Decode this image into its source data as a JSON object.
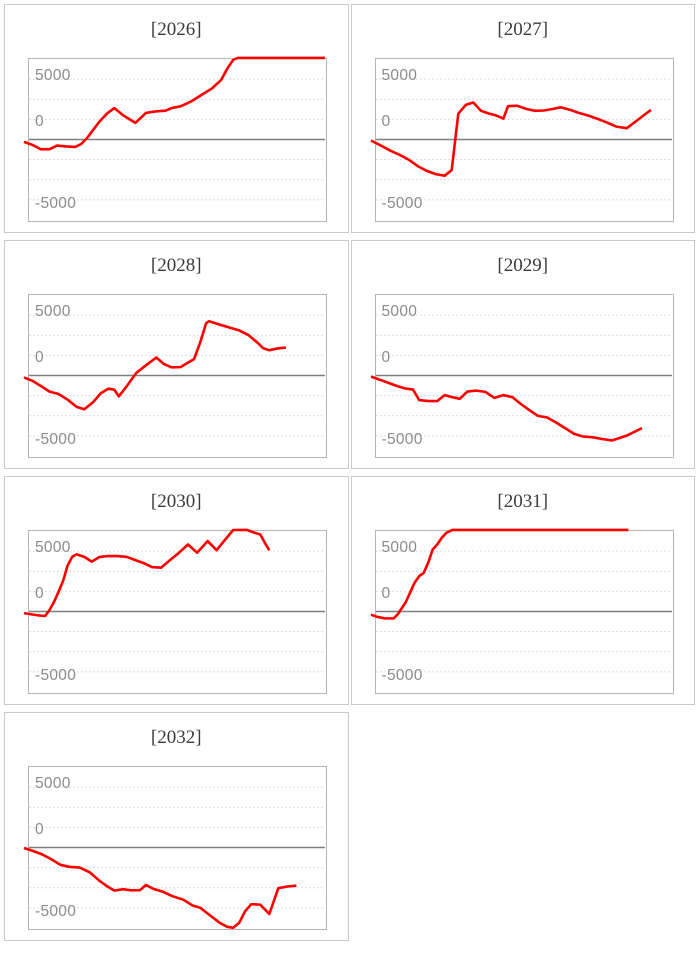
{
  "page": {
    "background": "#ffffff"
  },
  "colors": {
    "line": "#fe0000",
    "grid": "#dcdcdc",
    "zero_line": "#7f7f7f",
    "panel_border": "#c9c9c9",
    "plot_border": "#b5b5b5",
    "title_text": "#3b3b3f",
    "axis_text": "#8b8b8b"
  },
  "chart_data": [
    {
      "type": "line",
      "title": "[2026]",
      "ylim": [
        -5000,
        5000
      ],
      "ytick_labels": [
        "5000",
        "0",
        "-5000"
      ],
      "gridline_interval": 1250,
      "zero_line": true,
      "grid": "dashed-horizontal",
      "legend": "none",
      "points": [
        [
          0.0,
          -150
        ],
        [
          0.03,
          -350
        ],
        [
          0.055,
          -600
        ],
        [
          0.085,
          -600
        ],
        [
          0.11,
          -380
        ],
        [
          0.14,
          -430
        ],
        [
          0.17,
          -460
        ],
        [
          0.19,
          -280
        ],
        [
          0.21,
          100
        ],
        [
          0.23,
          600
        ],
        [
          0.25,
          1100
        ],
        [
          0.275,
          1600
        ],
        [
          0.3,
          1950
        ],
        [
          0.33,
          1500
        ],
        [
          0.37,
          1030
        ],
        [
          0.405,
          1650
        ],
        [
          0.44,
          1750
        ],
        [
          0.47,
          1790
        ],
        [
          0.49,
          1950
        ],
        [
          0.52,
          2060
        ],
        [
          0.555,
          2360
        ],
        [
          0.59,
          2770
        ],
        [
          0.625,
          3180
        ],
        [
          0.655,
          3700
        ],
        [
          0.675,
          4400
        ],
        [
          0.695,
          4950
        ],
        [
          0.71,
          5120
        ],
        [
          1.0,
          5120
        ]
      ]
    },
    {
      "type": "line",
      "title": "[2027]",
      "ylim": [
        -5000,
        5000
      ],
      "ytick_labels": [
        "5000",
        "0",
        "-5000"
      ],
      "gridline_interval": 1250,
      "zero_line": true,
      "grid": "dashed-horizontal",
      "legend": "none",
      "points": [
        [
          0.0,
          -60
        ],
        [
          0.03,
          -350
        ],
        [
          0.065,
          -700
        ],
        [
          0.095,
          -950
        ],
        [
          0.125,
          -1250
        ],
        [
          0.155,
          -1650
        ],
        [
          0.185,
          -1950
        ],
        [
          0.215,
          -2150
        ],
        [
          0.245,
          -2250
        ],
        [
          0.268,
          -1900
        ],
        [
          0.29,
          1600
        ],
        [
          0.315,
          2150
        ],
        [
          0.34,
          2300
        ],
        [
          0.365,
          1780
        ],
        [
          0.39,
          1620
        ],
        [
          0.415,
          1500
        ],
        [
          0.44,
          1300
        ],
        [
          0.455,
          2070
        ],
        [
          0.485,
          2100
        ],
        [
          0.515,
          1900
        ],
        [
          0.545,
          1780
        ],
        [
          0.575,
          1800
        ],
        [
          0.605,
          1900
        ],
        [
          0.63,
          2000
        ],
        [
          0.66,
          1850
        ],
        [
          0.69,
          1650
        ],
        [
          0.72,
          1500
        ],
        [
          0.75,
          1300
        ],
        [
          0.78,
          1080
        ],
        [
          0.815,
          800
        ],
        [
          0.85,
          700
        ],
        [
          0.93,
          1840
        ]
      ]
    },
    {
      "type": "line",
      "title": "[2028]",
      "ylim": [
        -5000,
        5000
      ],
      "ytick_labels": [
        "5000",
        "0",
        "-5000"
      ],
      "gridline_interval": 1250,
      "zero_line": true,
      "grid": "dashed-horizontal",
      "legend": "none",
      "points": [
        [
          0.0,
          -120
        ],
        [
          0.03,
          -350
        ],
        [
          0.06,
          -700
        ],
        [
          0.085,
          -1000
        ],
        [
          0.115,
          -1150
        ],
        [
          0.145,
          -1500
        ],
        [
          0.175,
          -1950
        ],
        [
          0.2,
          -2100
        ],
        [
          0.23,
          -1650
        ],
        [
          0.255,
          -1100
        ],
        [
          0.28,
          -820
        ],
        [
          0.3,
          -880
        ],
        [
          0.315,
          -1300
        ],
        [
          0.34,
          -700
        ],
        [
          0.373,
          160
        ],
        [
          0.41,
          700
        ],
        [
          0.44,
          1120
        ],
        [
          0.465,
          710
        ],
        [
          0.49,
          510
        ],
        [
          0.52,
          520
        ],
        [
          0.545,
          800
        ],
        [
          0.565,
          1020
        ],
        [
          0.585,
          2040
        ],
        [
          0.605,
          3250
        ],
        [
          0.615,
          3370
        ],
        [
          0.65,
          3160
        ],
        [
          0.685,
          2960
        ],
        [
          0.715,
          2800
        ],
        [
          0.745,
          2520
        ],
        [
          0.775,
          2050
        ],
        [
          0.795,
          1690
        ],
        [
          0.815,
          1570
        ],
        [
          0.845,
          1690
        ],
        [
          0.87,
          1730
        ]
      ]
    },
    {
      "type": "line",
      "title": "[2029]",
      "ylim": [
        -5000,
        5000
      ],
      "ytick_labels": [
        "5000",
        "0",
        "-5000"
      ],
      "gridline_interval": 1250,
      "zero_line": true,
      "grid": "dashed-horizontal",
      "legend": "none",
      "points": [
        [
          0.0,
          -60
        ],
        [
          0.03,
          -270
        ],
        [
          0.06,
          -470
        ],
        [
          0.09,
          -680
        ],
        [
          0.115,
          -815
        ],
        [
          0.14,
          -875
        ],
        [
          0.16,
          -1530
        ],
        [
          0.19,
          -1590
        ],
        [
          0.22,
          -1590
        ],
        [
          0.245,
          -1220
        ],
        [
          0.27,
          -1350
        ],
        [
          0.295,
          -1450
        ],
        [
          0.32,
          -1000
        ],
        [
          0.35,
          -940
        ],
        [
          0.38,
          -1020
        ],
        [
          0.41,
          -1390
        ],
        [
          0.44,
          -1220
        ],
        [
          0.47,
          -1350
        ],
        [
          0.5,
          -1800
        ],
        [
          0.53,
          -2200
        ],
        [
          0.555,
          -2510
        ],
        [
          0.585,
          -2610
        ],
        [
          0.615,
          -2920
        ],
        [
          0.645,
          -3270
        ],
        [
          0.675,
          -3630
        ],
        [
          0.705,
          -3795
        ],
        [
          0.735,
          -3835
        ],
        [
          0.765,
          -3940
        ],
        [
          0.8,
          -4040
        ],
        [
          0.85,
          -3730
        ],
        [
          0.9,
          -3270
        ]
      ]
    },
    {
      "type": "line",
      "title": "[2030]",
      "ylim": [
        -5000,
        5000
      ],
      "ytick_labels": [
        "5000",
        "0",
        "-5000"
      ],
      "gridline_interval": 1250,
      "zero_line": true,
      "grid": "dashed-horizontal",
      "legend": "none",
      "points": [
        [
          0.0,
          -100
        ],
        [
          0.025,
          -180
        ],
        [
          0.05,
          -250
        ],
        [
          0.07,
          -280
        ],
        [
          0.085,
          100
        ],
        [
          0.1,
          600
        ],
        [
          0.115,
          1230
        ],
        [
          0.13,
          1900
        ],
        [
          0.145,
          2860
        ],
        [
          0.16,
          3400
        ],
        [
          0.175,
          3550
        ],
        [
          0.2,
          3390
        ],
        [
          0.225,
          3100
        ],
        [
          0.25,
          3380
        ],
        [
          0.28,
          3450
        ],
        [
          0.31,
          3440
        ],
        [
          0.34,
          3400
        ],
        [
          0.37,
          3190
        ],
        [
          0.4,
          2990
        ],
        [
          0.425,
          2760
        ],
        [
          0.455,
          2720
        ],
        [
          0.485,
          3190
        ],
        [
          0.515,
          3650
        ],
        [
          0.545,
          4160
        ],
        [
          0.575,
          3650
        ],
        [
          0.61,
          4370
        ],
        [
          0.64,
          3810
        ],
        [
          0.67,
          4500
        ],
        [
          0.695,
          5060
        ],
        [
          0.74,
          5100
        ],
        [
          0.765,
          4900
        ],
        [
          0.785,
          4780
        ],
        [
          0.8,
          4270
        ],
        [
          0.815,
          3800
        ]
      ]
    },
    {
      "type": "line",
      "title": "[2031]",
      "ylim": [
        -5000,
        5000
      ],
      "ytick_labels": [
        "5000",
        "0",
        "-5000"
      ],
      "gridline_interval": 1250,
      "zero_line": true,
      "grid": "dashed-horizontal",
      "legend": "none",
      "points": [
        [
          0.0,
          -200
        ],
        [
          0.02,
          -330
        ],
        [
          0.045,
          -420
        ],
        [
          0.075,
          -430
        ],
        [
          0.09,
          -150
        ],
        [
          0.1,
          150
        ],
        [
          0.115,
          560
        ],
        [
          0.13,
          1175
        ],
        [
          0.145,
          1790
        ],
        [
          0.16,
          2200
        ],
        [
          0.175,
          2400
        ],
        [
          0.19,
          3030
        ],
        [
          0.205,
          3850
        ],
        [
          0.22,
          4160
        ],
        [
          0.235,
          4570
        ],
        [
          0.25,
          4880
        ],
        [
          0.27,
          5120
        ],
        [
          0.855,
          5120
        ]
      ]
    },
    {
      "type": "line",
      "title": "[2032]",
      "ylim": [
        -5000,
        5000
      ],
      "ytick_labels": [
        "5000",
        "0",
        "-5000"
      ],
      "gridline_interval": 1250,
      "zero_line": true,
      "grid": "dashed-horizontal",
      "legend": "none",
      "points": [
        [
          0.0,
          -30
        ],
        [
          0.03,
          -220
        ],
        [
          0.06,
          -430
        ],
        [
          0.09,
          -720
        ],
        [
          0.12,
          -1070
        ],
        [
          0.15,
          -1200
        ],
        [
          0.185,
          -1250
        ],
        [
          0.22,
          -1560
        ],
        [
          0.25,
          -2060
        ],
        [
          0.275,
          -2400
        ],
        [
          0.3,
          -2680
        ],
        [
          0.33,
          -2590
        ],
        [
          0.355,
          -2660
        ],
        [
          0.385,
          -2650
        ],
        [
          0.405,
          -2330
        ],
        [
          0.43,
          -2570
        ],
        [
          0.46,
          -2740
        ],
        [
          0.49,
          -3000
        ],
        [
          0.53,
          -3250
        ],
        [
          0.56,
          -3600
        ],
        [
          0.585,
          -3740
        ],
        [
          0.615,
          -4170
        ],
        [
          0.65,
          -4680
        ],
        [
          0.675,
          -4925
        ],
        [
          0.695,
          -4985
        ],
        [
          0.715,
          -4680
        ],
        [
          0.735,
          -3950
        ],
        [
          0.755,
          -3520
        ],
        [
          0.785,
          -3550
        ],
        [
          0.815,
          -4130
        ],
        [
          0.845,
          -2530
        ],
        [
          0.875,
          -2420
        ],
        [
          0.905,
          -2370
        ]
      ]
    }
  ]
}
